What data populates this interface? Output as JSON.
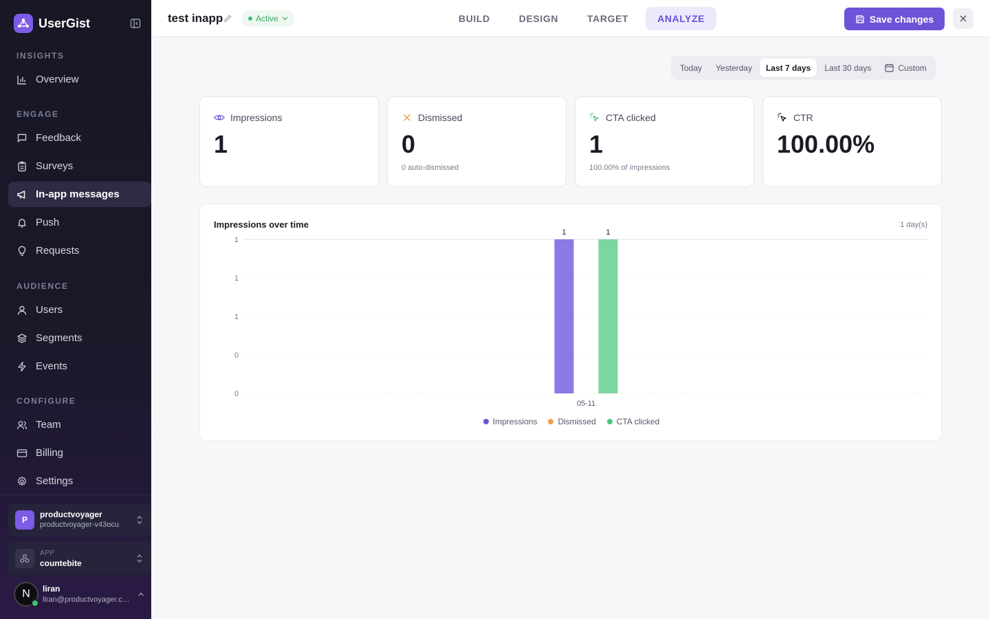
{
  "brand": {
    "name": "UserGist"
  },
  "sidebar": {
    "sections": [
      {
        "title": "INSIGHTS"
      },
      {
        "title": "ENGAGE"
      },
      {
        "title": "AUDIENCE"
      },
      {
        "title": "CONFIGURE"
      }
    ],
    "items": [
      {
        "label": "Overview",
        "icon": "bar-chart-icon"
      },
      {
        "label": "Feedback",
        "icon": "message-square-icon"
      },
      {
        "label": "Surveys",
        "icon": "clipboard-icon"
      },
      {
        "label": "In-app messages",
        "icon": "megaphone-icon",
        "active": true
      },
      {
        "label": "Push",
        "icon": "bell-icon"
      },
      {
        "label": "Requests",
        "icon": "lightbulb-icon"
      },
      {
        "label": "Users",
        "icon": "user-icon"
      },
      {
        "label": "Segments",
        "icon": "layers-icon"
      },
      {
        "label": "Events",
        "icon": "zap-icon"
      },
      {
        "label": "Team",
        "icon": "users-icon"
      },
      {
        "label": "Billing",
        "icon": "credit-card-icon"
      },
      {
        "label": "Settings",
        "icon": "gear-icon"
      }
    ],
    "org": {
      "initial": "P",
      "name": "productvoyager",
      "slug": "productvoyager-v43ocu"
    },
    "app": {
      "label": "APP",
      "name": "countebite"
    },
    "user": {
      "initial": "N",
      "name": "liran",
      "email": "liran@productvoyager.co..."
    }
  },
  "header": {
    "title": "test inapp",
    "status": "Active",
    "tabs": [
      {
        "label": "BUILD"
      },
      {
        "label": "DESIGN"
      },
      {
        "label": "TARGET"
      },
      {
        "label": "ANALYZE",
        "active": true
      }
    ],
    "save_label": "Save changes"
  },
  "date_range": {
    "options": [
      "Today",
      "Yesterday",
      "Last 7 days",
      "Last 30 days",
      "Custom"
    ],
    "selected": "Last 7 days"
  },
  "stats": [
    {
      "label": "Impressions",
      "value": "1",
      "sub": "",
      "icon": "eye-icon",
      "color": "#6e52d8"
    },
    {
      "label": "Dismissed",
      "value": "0",
      "sub": "0 auto-dismissed",
      "icon": "x-icon",
      "color": "#f0a04b"
    },
    {
      "label": "CTA clicked",
      "value": "1",
      "sub": "100.00% of impressions",
      "icon": "pointer-click-icon",
      "color": "#4cc37f"
    },
    {
      "label": "CTR",
      "value": "100.00%",
      "sub": "",
      "icon": "cursor-click-icon",
      "color": "#1b1b24"
    }
  ],
  "chart_data": {
    "type": "bar",
    "title": "Impressions over time",
    "range_label": "1 day(s)",
    "categories": [
      "05-11"
    ],
    "y_tick_labels": [
      "1",
      "1",
      "1",
      "0",
      "0"
    ],
    "ylim": [
      0,
      1
    ],
    "grid": true,
    "legend_position": "bottom-center",
    "series": [
      {
        "name": "Impressions",
        "values": [
          1
        ],
        "color": "#8a79e6",
        "legend_color": "#6e52d8"
      },
      {
        "name": "Dismissed",
        "values": [
          0
        ],
        "color": "#f0a04b",
        "legend_color": "#f0a04b"
      },
      {
        "name": "CTA clicked",
        "values": [
          1
        ],
        "color": "#7dd6a0",
        "legend_color": "#4cc37f"
      }
    ]
  }
}
